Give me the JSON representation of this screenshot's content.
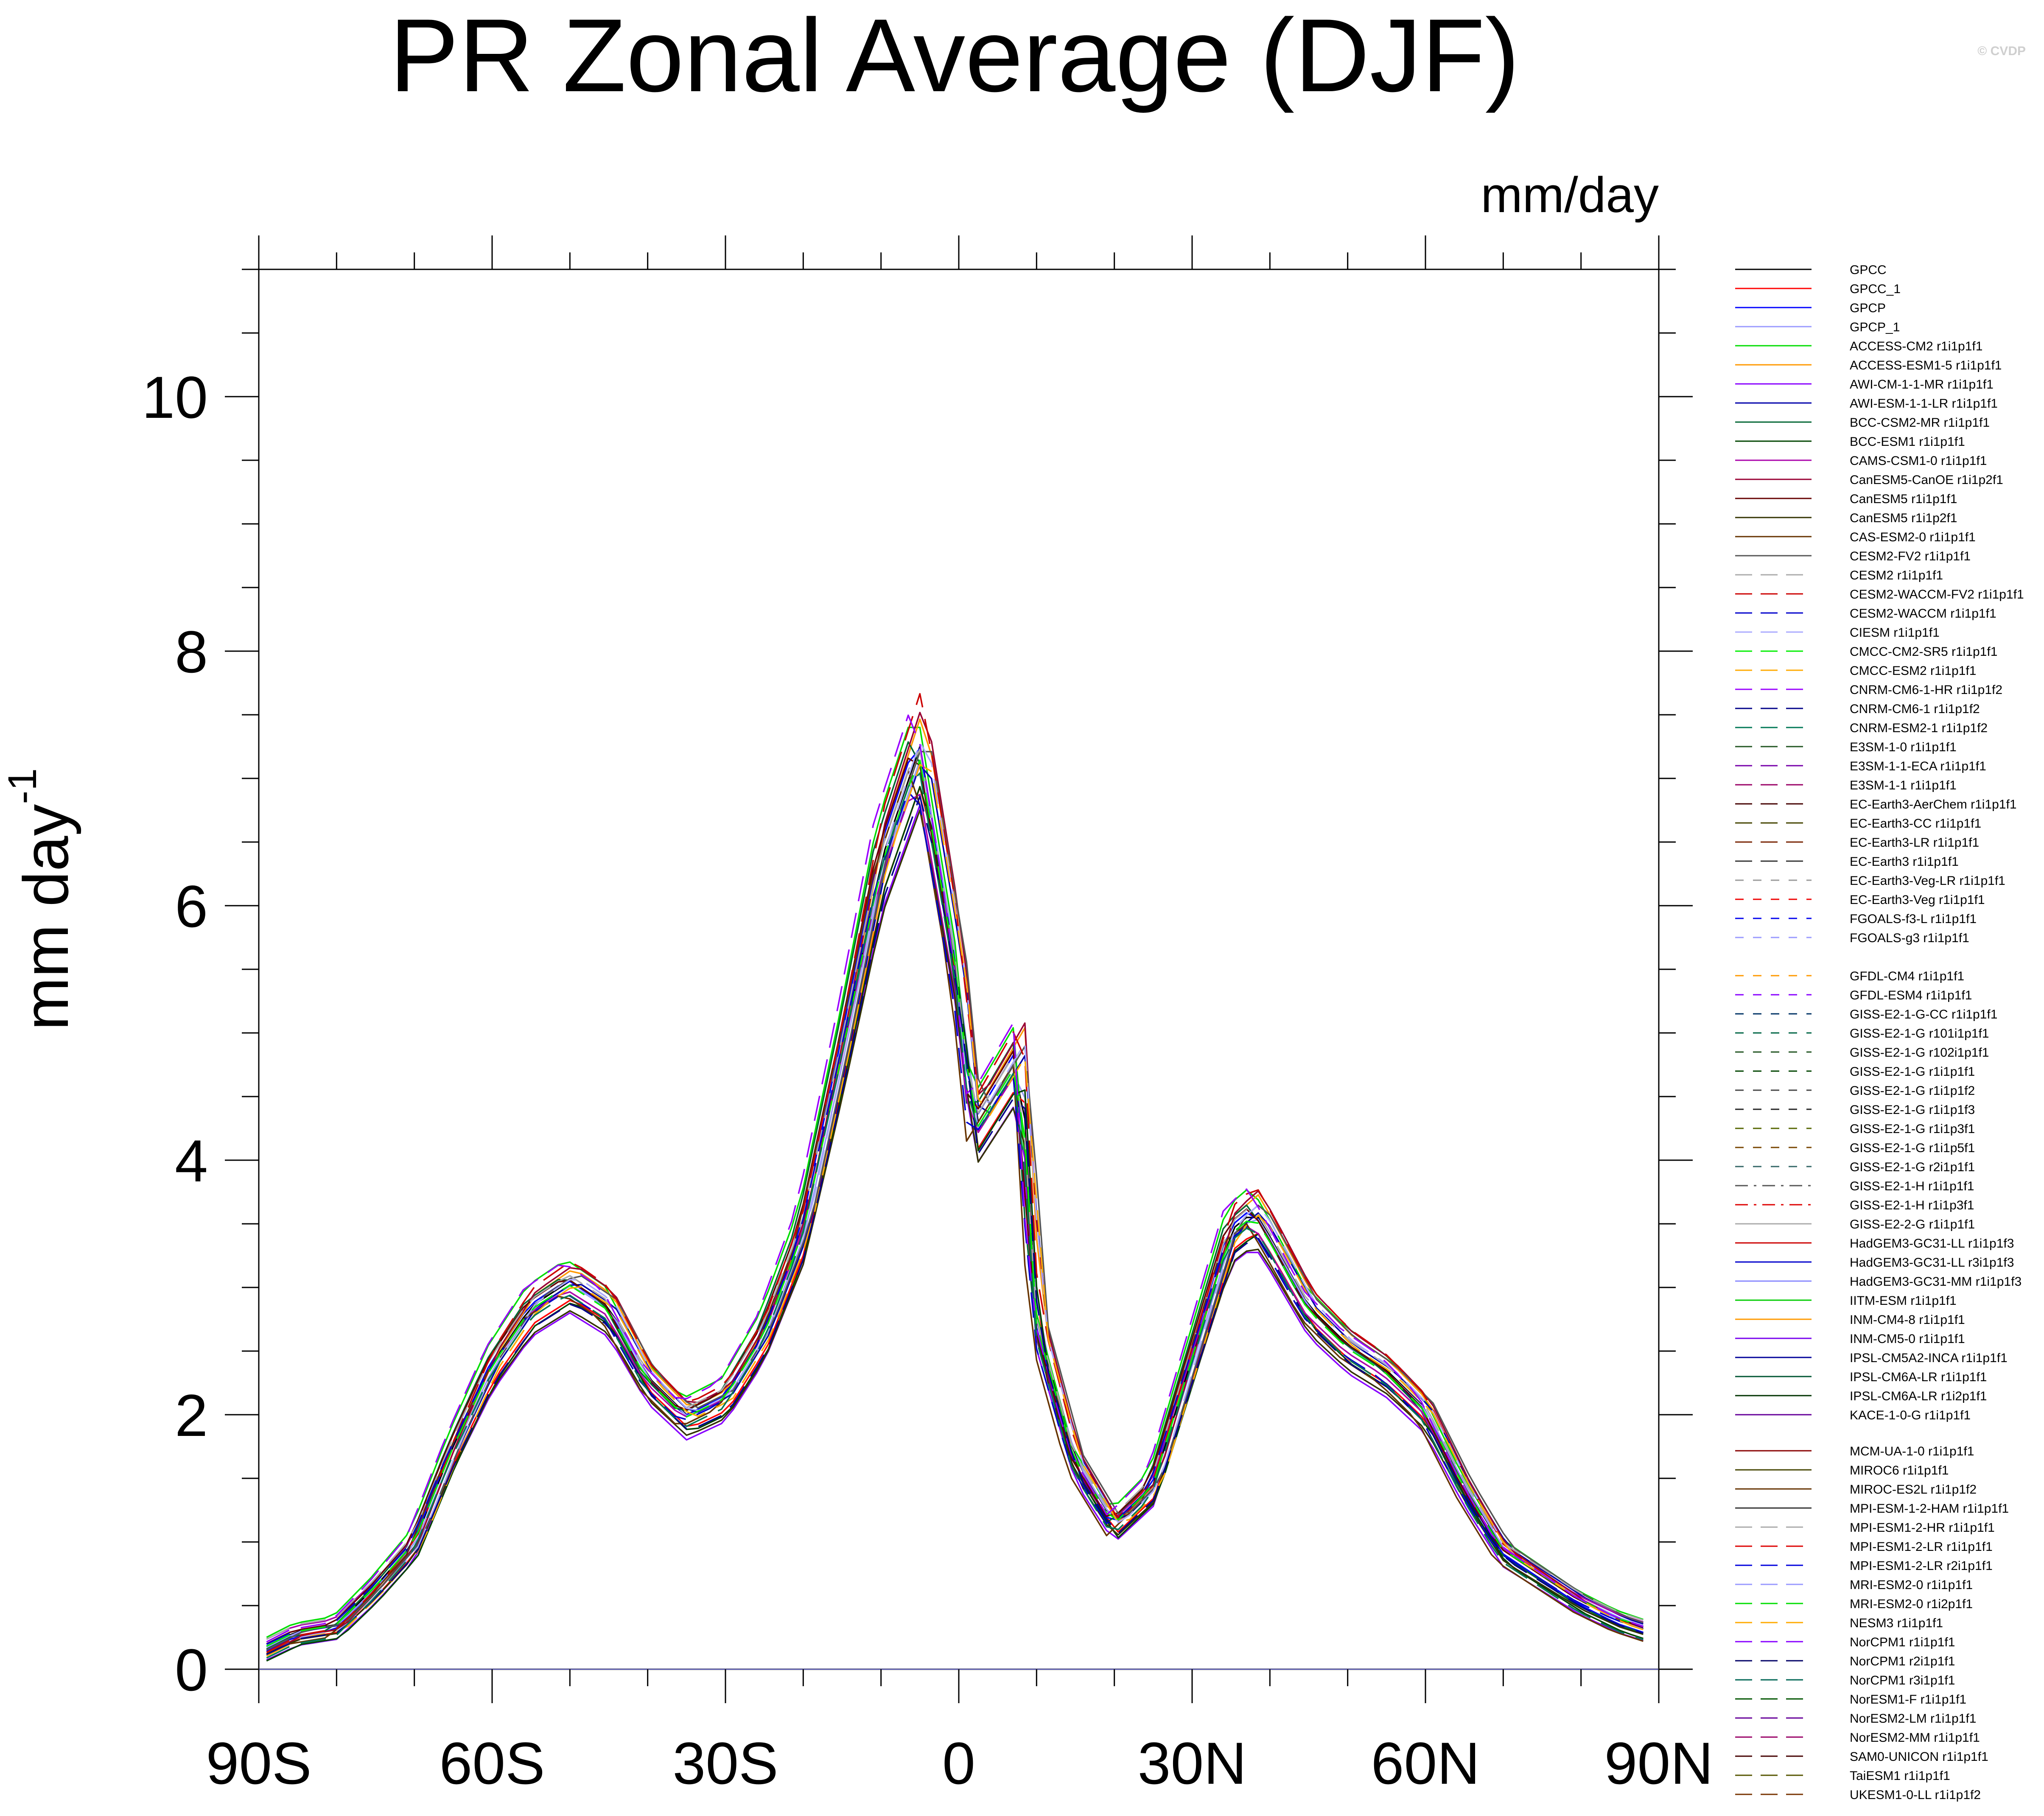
{
  "title": "PR Zonal Average (DJF)",
  "units_label": "mm/day",
  "ylabel_main": "mm day",
  "ylabel_sup": "-1",
  "copyright": "© CVDP",
  "chart_data": {
    "type": "line",
    "title": "PR Zonal Average (DJF)",
    "xlabel": "",
    "ylabel": "mm day-1",
    "xlim": [
      -90,
      90
    ],
    "ylim": [
      0,
      11
    ],
    "grid": false,
    "legend_position": "right",
    "x_ticks": [
      {
        "value": -90,
        "label": "90S"
      },
      {
        "value": -60,
        "label": "60S"
      },
      {
        "value": -30,
        "label": "30S"
      },
      {
        "value": 0,
        "label": "0"
      },
      {
        "value": 30,
        "label": "30N"
      },
      {
        "value": 60,
        "label": "60N"
      },
      {
        "value": 90,
        "label": "90N"
      }
    ],
    "y_ticks": [
      {
        "value": 0,
        "label": "0"
      },
      {
        "value": 2,
        "label": "2"
      },
      {
        "value": 4,
        "label": "4"
      },
      {
        "value": 6,
        "label": "6"
      },
      {
        "value": 8,
        "label": "8"
      },
      {
        "value": 10,
        "label": "10"
      }
    ],
    "reference_x": [
      -90,
      -85,
      -80,
      -75,
      -70,
      -65,
      -60,
      -55,
      -50,
      -45,
      -40,
      -35,
      -30,
      -25,
      -20,
      -15,
      -10,
      -5,
      0,
      2,
      5,
      8,
      10,
      15,
      20,
      25,
      30,
      35,
      38,
      40,
      45,
      50,
      55,
      60,
      65,
      70,
      75,
      80,
      85,
      90
    ],
    "reference_y": [
      0.1,
      0.25,
      0.3,
      0.6,
      0.95,
      1.7,
      2.35,
      2.8,
      3.0,
      2.8,
      2.25,
      1.95,
      2.1,
      2.6,
      3.4,
      4.8,
      6.3,
      7.2,
      5.4,
      4.2,
      4.5,
      4.8,
      2.7,
      1.6,
      1.1,
      1.4,
      2.4,
      3.4,
      3.55,
      3.35,
      2.8,
      2.5,
      2.3,
      2.0,
      1.4,
      0.9,
      0.7,
      0.5,
      0.35,
      0.25
    ],
    "series": [
      {
        "name": "GPCC",
        "color": "#000000",
        "dash": "solid",
        "offset": 0.05,
        "scale": 1.0,
        "shift": 0.0
      },
      {
        "name": "GPCC_1",
        "color": "#ff0000",
        "dash": "solid",
        "offset": 0.0,
        "scale": 0.97,
        "shift": 0.3
      },
      {
        "name": "GPCP",
        "color": "#0000ff",
        "dash": "solid",
        "offset": 0.0,
        "scale": 1.02,
        "shift": -0.3
      },
      {
        "name": "GPCP_1",
        "color": "#9999ff",
        "dash": "solid",
        "offset": 0.05,
        "scale": 0.99,
        "shift": 0.2
      },
      {
        "name": "ACCESS-CM2 r1i1p1f1",
        "color": "#00dd00",
        "dash": "solid",
        "offset": 0.1,
        "scale": 1.04,
        "shift": -0.5
      },
      {
        "name": "ACCESS-ESM1-5 r1i1p1f1",
        "color": "#ff9900",
        "dash": "solid",
        "offset": 0.0,
        "scale": 1.05,
        "shift": 0.5
      },
      {
        "name": "AWI-CM-1-1-MR r1i1p1f1",
        "color": "#8800ff",
        "dash": "solid",
        "offset": -0.05,
        "scale": 0.95,
        "shift": 0.0
      },
      {
        "name": "AWI-ESM-1-1-LR r1i1p1f1",
        "color": "#0000aa",
        "dash": "solid",
        "offset": 0.05,
        "scale": 1.0,
        "shift": 0.8
      },
      {
        "name": "BCC-CSM2-MR r1i1p1f1",
        "color": "#006633",
        "dash": "solid",
        "offset": 0.0,
        "scale": 1.03,
        "shift": -0.8
      },
      {
        "name": "BCC-ESM1 r1i1p1f1",
        "color": "#004400",
        "dash": "solid",
        "offset": -0.05,
        "scale": 0.98,
        "shift": 0.4
      },
      {
        "name": "CAMS-CSM1-0 r1i1p1f1",
        "color": "#aa00aa",
        "dash": "solid",
        "offset": 0.1,
        "scale": 0.96,
        "shift": -0.4
      },
      {
        "name": "CanESM5-CanOE r1i1p2f1",
        "color": "#990033",
        "dash": "solid",
        "offset": 0.0,
        "scale": 1.06,
        "shift": 0.6
      },
      {
        "name": "CanESM5 r1i1p1f1",
        "color": "#660000",
        "dash": "solid",
        "offset": 0.05,
        "scale": 1.01,
        "shift": -0.6
      },
      {
        "name": "CanESM5 r1i1p2f1",
        "color": "#333300",
        "dash": "solid",
        "offset": 0.0,
        "scale": 0.94,
        "shift": 0.1
      },
      {
        "name": "CAS-ESM2-0 r1i1p1f1",
        "color": "#663300",
        "dash": "solid",
        "offset": -0.05,
        "scale": 1.0,
        "shift": -1.0
      },
      {
        "name": "CESM2-FV2 r1i1p1f1",
        "color": "#555555",
        "dash": "solid",
        "offset": 0.05,
        "scale": 1.02,
        "shift": 1.0
      },
      {
        "name": "CESM2 r1i1p1f1",
        "color": "#aaaaaa",
        "dash": "longdash",
        "offset": 0.1,
        "scale": 1.0,
        "shift": -0.2
      },
      {
        "name": "CESM2-WACCM-FV2 r1i1p1f1",
        "color": "#cc0000",
        "dash": "longdash",
        "offset": 0.0,
        "scale": 1.07,
        "shift": 0.2
      },
      {
        "name": "CESM2-WACCM r1i1p1f1",
        "color": "#0000cc",
        "dash": "longdash",
        "offset": 0.05,
        "scale": 0.97,
        "shift": -0.7
      },
      {
        "name": "CIESM r1i1p1f1",
        "color": "#aaaaff",
        "dash": "longdash",
        "offset": 0.0,
        "scale": 1.03,
        "shift": 0.7
      },
      {
        "name": "CMCC-CM2-SR5 r1i1p1f1",
        "color": "#00ee00",
        "dash": "longdash",
        "offset": 0.05,
        "scale": 0.99,
        "shift": -0.1
      },
      {
        "name": "CMCC-ESM2 r1i1p1f1",
        "color": "#ffaa00",
        "dash": "longdash",
        "offset": 0.0,
        "scale": 1.01,
        "shift": 0.9
      },
      {
        "name": "CNRM-CM6-1-HR r1i1p1f2",
        "color": "#9900ff",
        "dash": "longdash",
        "offset": 0.05,
        "scale": 1.05,
        "shift": -0.9
      },
      {
        "name": "CNRM-CM6-1 r1i1p1f2",
        "color": "#000088",
        "dash": "longdash",
        "offset": 0.0,
        "scale": 0.96,
        "shift": 0.3
      },
      {
        "name": "CNRM-ESM2-1 r1i1p1f2",
        "color": "#007755",
        "dash": "longdash",
        "offset": -0.05,
        "scale": 1.0,
        "shift": -0.3
      }
    ]
  },
  "legend": {
    "group1": [
      {
        "label": "GPCC",
        "color": "#000000",
        "dash": "solid"
      },
      {
        "label": "GPCC_1",
        "color": "#ff0000",
        "dash": "solid"
      },
      {
        "label": "GPCP",
        "color": "#0000ff",
        "dash": "solid"
      },
      {
        "label": "GPCP_1",
        "color": "#9999ff",
        "dash": "solid"
      },
      {
        "label": "ACCESS-CM2 r1i1p1f1",
        "color": "#00dd00",
        "dash": "solid"
      },
      {
        "label": "ACCESS-ESM1-5 r1i1p1f1",
        "color": "#ff9900",
        "dash": "solid"
      },
      {
        "label": "AWI-CM-1-1-MR r1i1p1f1",
        "color": "#8800ff",
        "dash": "solid"
      },
      {
        "label": "AWI-ESM-1-1-LR r1i1p1f1",
        "color": "#0000aa",
        "dash": "solid"
      },
      {
        "label": "BCC-CSM2-MR r1i1p1f1",
        "color": "#006633",
        "dash": "solid"
      },
      {
        "label": "BCC-ESM1 r1i1p1f1",
        "color": "#004400",
        "dash": "solid"
      },
      {
        "label": "CAMS-CSM1-0 r1i1p1f1",
        "color": "#aa00aa",
        "dash": "solid"
      },
      {
        "label": "CanESM5-CanOE r1i1p2f1",
        "color": "#990033",
        "dash": "solid"
      },
      {
        "label": "CanESM5 r1i1p1f1",
        "color": "#660000",
        "dash": "solid"
      },
      {
        "label": "CanESM5 r1i1p2f1",
        "color": "#333300",
        "dash": "solid"
      },
      {
        "label": "CAS-ESM2-0 r1i1p1f1",
        "color": "#663300",
        "dash": "solid"
      },
      {
        "label": "CESM2-FV2 r1i1p1f1",
        "color": "#555555",
        "dash": "solid"
      },
      {
        "label": "CESM2 r1i1p1f1",
        "color": "#aaaaaa",
        "dash": "longdash"
      },
      {
        "label": "CESM2-WACCM-FV2 r1i1p1f1",
        "color": "#cc0000",
        "dash": "longdash"
      },
      {
        "label": "CESM2-WACCM r1i1p1f1",
        "color": "#0000cc",
        "dash": "longdash"
      },
      {
        "label": "CIESM r1i1p1f1",
        "color": "#aaaaff",
        "dash": "longdash"
      },
      {
        "label": "CMCC-CM2-SR5 r1i1p1f1",
        "color": "#00ee00",
        "dash": "longdash"
      },
      {
        "label": "CMCC-ESM2 r1i1p1f1",
        "color": "#ffaa00",
        "dash": "longdash"
      },
      {
        "label": "CNRM-CM6-1-HR r1i1p1f2",
        "color": "#9900ff",
        "dash": "longdash"
      },
      {
        "label": "CNRM-CM6-1 r1i1p1f2",
        "color": "#000088",
        "dash": "longdash"
      },
      {
        "label": "CNRM-ESM2-1 r1i1p1f2",
        "color": "#007755",
        "dash": "longdash"
      },
      {
        "label": "E3SM-1-0 r1i1p1f1",
        "color": "#225522",
        "dash": "longdash"
      },
      {
        "label": "E3SM-1-1-ECA r1i1p1f1",
        "color": "#7700aa",
        "dash": "longdash"
      },
      {
        "label": "E3SM-1-1 r1i1p1f1",
        "color": "#990066",
        "dash": "longdash"
      },
      {
        "label": "EC-Earth3-AerChem r1i1p1f1",
        "color": "#440000",
        "dash": "longdash"
      },
      {
        "label": "EC-Earth3-CC r1i1p1f1",
        "color": "#444400",
        "dash": "longdash"
      },
      {
        "label": "EC-Earth3-LR r1i1p1f1",
        "color": "#772200",
        "dash": "longdash"
      },
      {
        "label": "EC-Earth3 r1i1p1f1",
        "color": "#333333",
        "dash": "longdash"
      },
      {
        "label": "EC-Earth3-Veg-LR r1i1p1f1",
        "color": "#999999",
        "dash": "dash"
      },
      {
        "label": "EC-Earth3-Veg r1i1p1f1",
        "color": "#ee0000",
        "dash": "dash"
      },
      {
        "label": "FGOALS-f3-L r1i1p1f1",
        "color": "#0000ee",
        "dash": "dash"
      },
      {
        "label": "FGOALS-g3 r1i1p1f1",
        "color": "#9999ff",
        "dash": "dash"
      }
    ],
    "group2": [
      {
        "label": "GFDL-CM4 r1i1p1f1",
        "color": "#ff9900",
        "dash": "dash"
      },
      {
        "label": "GFDL-ESM4 r1i1p1f1",
        "color": "#8800ff",
        "dash": "dash"
      },
      {
        "label": "GISS-E2-1-G-CC r1i1p1f1",
        "color": "#003366",
        "dash": "dash"
      },
      {
        "label": "GISS-E2-1-G r101i1p1f1",
        "color": "#006644",
        "dash": "dash"
      },
      {
        "label": "GISS-E2-1-G r102i1p1f1",
        "color": "#225522",
        "dash": "dash"
      },
      {
        "label": "GISS-E2-1-G r1i1p1f1",
        "color": "#004400",
        "dash": "dash"
      },
      {
        "label": "GISS-E2-1-G r1i1p1f2",
        "color": "#444444",
        "dash": "dash"
      },
      {
        "label": "GISS-E2-1-G r1i1p1f3",
        "color": "#222222",
        "dash": "dash"
      },
      {
        "label": "GISS-E2-1-G r1i1p3f1",
        "color": "#556600",
        "dash": "dash"
      },
      {
        "label": "GISS-E2-1-G r1i1p5f1",
        "color": "#774400",
        "dash": "dash"
      },
      {
        "label": "GISS-E2-1-G r2i1p1f1",
        "color": "#336666",
        "dash": "dash"
      },
      {
        "label": "GISS-E2-1-H r1i1p1f1",
        "color": "#555555",
        "dash": "dashdot"
      },
      {
        "label": "GISS-E2-1-H r1i1p3f1",
        "color": "#dd0000",
        "dash": "dashdot"
      },
      {
        "label": "GISS-E2-2-G r1i1p1f1",
        "color": "#aaaaaa",
        "dash": "solid"
      },
      {
        "label": "HadGEM3-GC31-LL r1i1p1f3",
        "color": "#cc0000",
        "dash": "solid"
      },
      {
        "label": "HadGEM3-GC31-LL r3i1p1f3",
        "color": "#0000cc",
        "dash": "solid"
      },
      {
        "label": "HadGEM3-GC31-MM r1i1p1f3",
        "color": "#8888ff",
        "dash": "solid"
      },
      {
        "label": "IITM-ESM r1i1p1f1",
        "color": "#00cc00",
        "dash": "solid"
      },
      {
        "label": "INM-CM4-8 r1i1p1f1",
        "color": "#ff9900",
        "dash": "solid"
      },
      {
        "label": "INM-CM5-0 r1i1p1f1",
        "color": "#7700ee",
        "dash": "solid"
      },
      {
        "label": "IPSL-CM5A2-INCA r1i1p1f1",
        "color": "#000099",
        "dash": "solid"
      },
      {
        "label": "IPSL-CM6A-LR r1i1p1f1",
        "color": "#005533",
        "dash": "solid"
      },
      {
        "label": "IPSL-CM6A-LR r1i2p1f1",
        "color": "#003300",
        "dash": "solid"
      },
      {
        "label": "KACE-1-0-G r1i1p1f1",
        "color": "#660099",
        "dash": "solid"
      }
    ],
    "group3": [
      {
        "label": "MCM-UA-1-0 r1i1p1f1",
        "color": "#880000",
        "dash": "solid"
      },
      {
        "label": "MIROC6 r1i1p1f1",
        "color": "#444400",
        "dash": "solid"
      },
      {
        "label": "MIROC-ES2L r1i1p1f2",
        "color": "#663300",
        "dash": "solid"
      },
      {
        "label": "MPI-ESM-1-2-HAM r1i1p1f1",
        "color": "#333333",
        "dash": "solid"
      },
      {
        "label": "MPI-ESM1-2-HR r1i1p1f1",
        "color": "#aaaaaa",
        "dash": "longdash"
      },
      {
        "label": "MPI-ESM1-2-LR r1i1p1f1",
        "color": "#dd0000",
        "dash": "longdash"
      },
      {
        "label": "MPI-ESM1-2-LR r2i1p1f1",
        "color": "#0000dd",
        "dash": "longdash"
      },
      {
        "label": "MRI-ESM2-0 r1i1p1f1",
        "color": "#9999ff",
        "dash": "longdash"
      },
      {
        "label": "MRI-ESM2-0 r1i2p1f1",
        "color": "#00dd00",
        "dash": "longdash"
      },
      {
        "label": "NESM3 r1i1p1f1",
        "color": "#ffaa00",
        "dash": "longdash"
      },
      {
        "label": "NorCPM1 r1i1p1f1",
        "color": "#8800ff",
        "dash": "longdash"
      },
      {
        "label": "NorCPM1 r2i1p1f1",
        "color": "#000066",
        "dash": "longdash"
      },
      {
        "label": "NorCPM1 r3i1p1f1",
        "color": "#006655",
        "dash": "longdash"
      },
      {
        "label": "NorESM1-F r1i1p1f1",
        "color": "#005500",
        "dash": "longdash"
      },
      {
        "label": "NorESM2-LM r1i1p1f1",
        "color": "#660099",
        "dash": "longdash"
      },
      {
        "label": "NorESM2-MM r1i1p1f1",
        "color": "#990066",
        "dash": "longdash"
      },
      {
        "label": "SAM0-UNICON r1i1p1f1",
        "color": "#440000",
        "dash": "longdash"
      },
      {
        "label": "TaiESM1 r1i1p1f1",
        "color": "#555500",
        "dash": "longdash"
      },
      {
        "label": "UKESM1-0-LL r1i1p1f2",
        "color": "#773300",
        "dash": "longdash"
      }
    ]
  }
}
